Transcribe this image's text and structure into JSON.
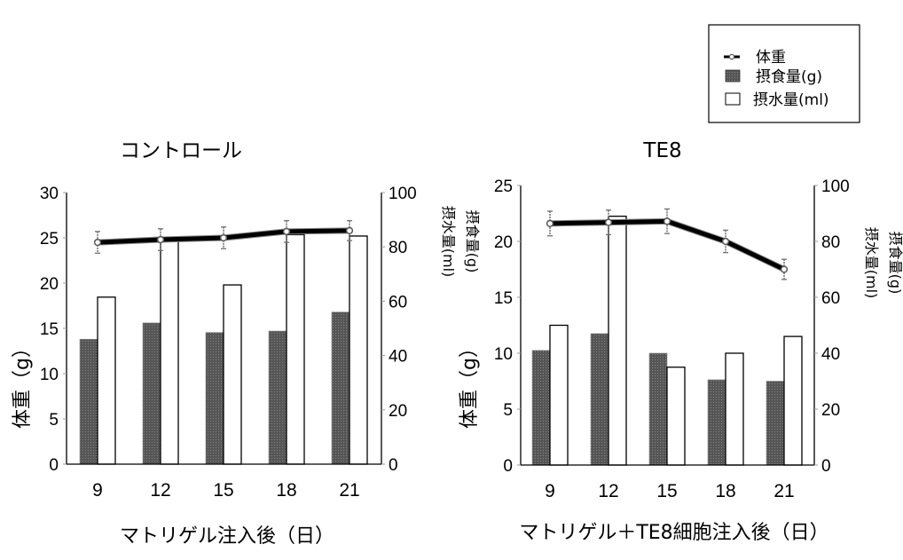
{
  "legend": {
    "items": [
      {
        "label": "体重",
        "kind": "line"
      },
      {
        "label": "摂食量(g)",
        "kind": "bar-gray"
      },
      {
        "label": "摂水量(ml)",
        "kind": "bar-white"
      }
    ]
  },
  "colors": {
    "food_bar": "#5c5c5c",
    "water_bar": "#ffffff",
    "line": "#000000",
    "axis": "#000000"
  },
  "chart_data": [
    {
      "type": "bar",
      "combo": "bar+line",
      "title": "コントロール",
      "xlabel": "マトリゲル注入後（日）",
      "ylabel": "体重（g）",
      "ylabel_right": [
        "摂水量(ml)",
        "摂食量(g)"
      ],
      "categories": [
        "9",
        "12",
        "15",
        "18",
        "21"
      ],
      "ylim": [
        0,
        30
      ],
      "yticks": [
        "0",
        "5",
        "10",
        "15",
        "20",
        "25",
        "30"
      ],
      "ylim_right": [
        0,
        100
      ],
      "yticks_right": [
        "0",
        "20",
        "40",
        "60",
        "80",
        "100"
      ],
      "grid": false,
      "series": [
        {
          "name": "体重",
          "type": "line",
          "axis": "left",
          "values": [
            24.5,
            24.8,
            25.0,
            25.7,
            25.8
          ],
          "error": [
            1.2,
            1.2,
            1.2,
            1.2,
            1.1
          ]
        },
        {
          "name": "摂食量(g)",
          "type": "bar",
          "axis": "right",
          "values": [
            46,
            52,
            48.5,
            49,
            56
          ]
        },
        {
          "name": "摂水量(ml)",
          "type": "bar",
          "axis": "right",
          "values": [
            61.5,
            82,
            66,
            84.5,
            84
          ]
        }
      ]
    },
    {
      "type": "bar",
      "combo": "bar+line",
      "title": "TE8",
      "xlabel": "マトリゲル＋TE8細胞注入後（日）",
      "ylabel": "体重（g）",
      "ylabel_right": [
        "摂水量(ml)",
        "摂食量(g)"
      ],
      "categories": [
        "9",
        "12",
        "15",
        "18",
        "21"
      ],
      "ylim": [
        0,
        25
      ],
      "yticks": [
        "0",
        "5",
        "10",
        "15",
        "20",
        "25"
      ],
      "ylim_right": [
        0,
        100
      ],
      "yticks_right": [
        "0",
        "20",
        "40",
        "60",
        "80",
        "100"
      ],
      "grid": false,
      "series": [
        {
          "name": "体重",
          "type": "line",
          "axis": "left",
          "values": [
            21.6,
            21.7,
            21.8,
            20.0,
            17.5
          ],
          "error": [
            1.1,
            1.1,
            1.1,
            1.0,
            0.9
          ]
        },
        {
          "name": "摂食量(g)",
          "type": "bar",
          "axis": "right",
          "values": [
            41,
            47,
            40,
            30.5,
            30
          ]
        },
        {
          "name": "摂水量(ml)",
          "type": "bar",
          "axis": "right",
          "values": [
            50,
            89,
            35,
            40,
            46
          ]
        }
      ]
    }
  ]
}
